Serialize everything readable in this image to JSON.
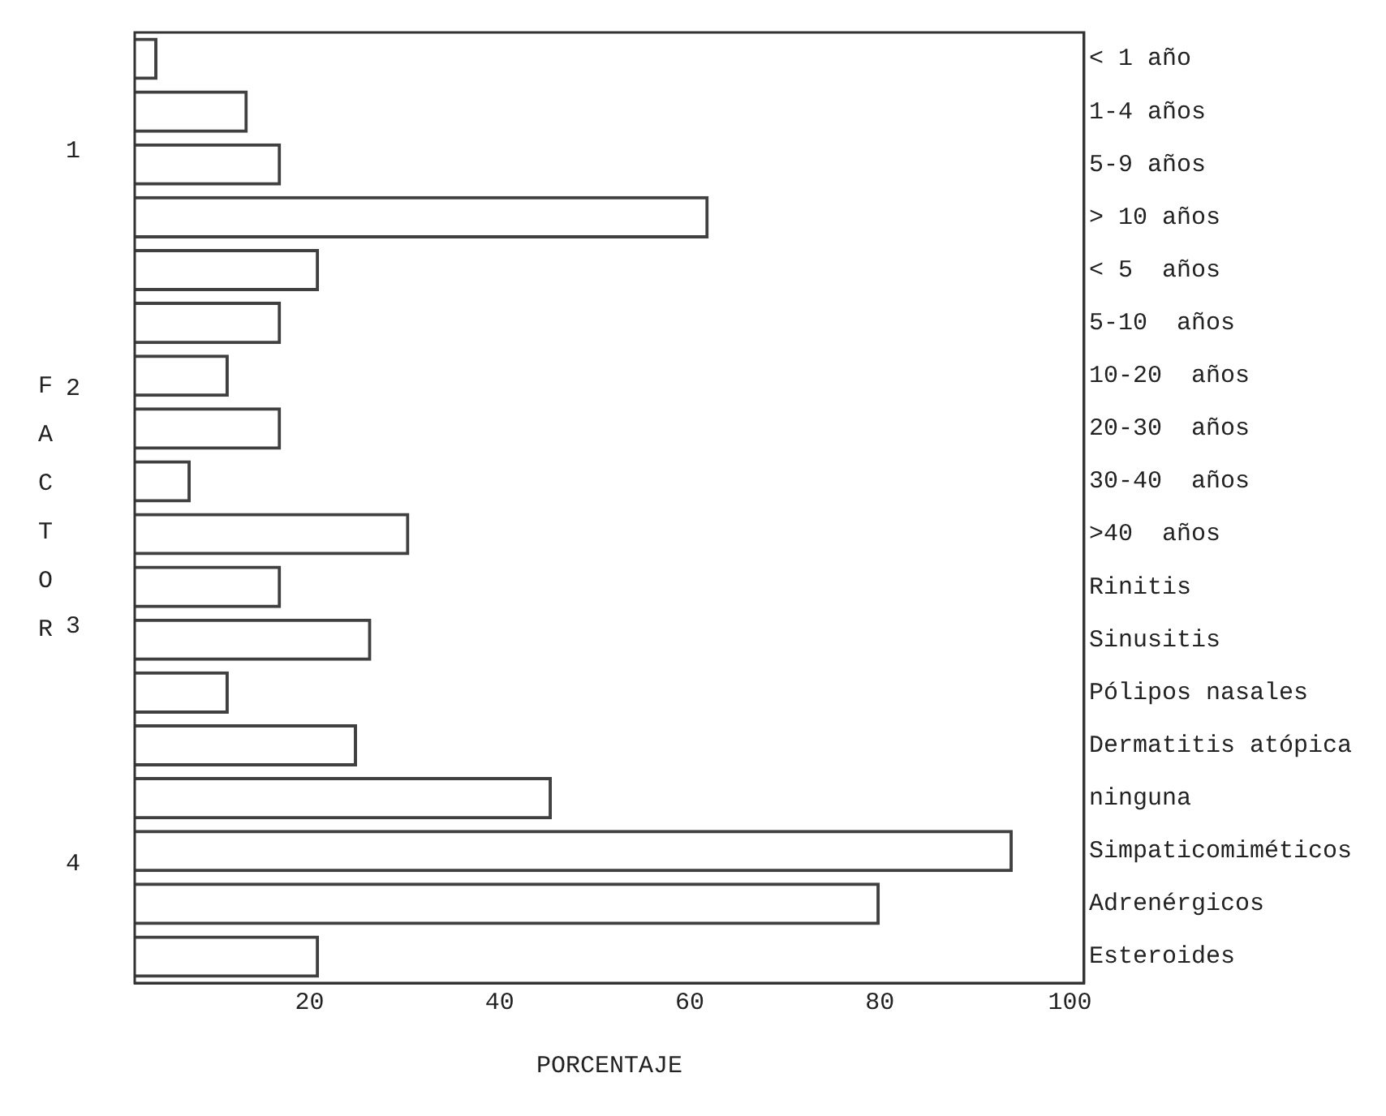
{
  "chart_data": {
    "type": "bar",
    "orientation": "horizontal",
    "xlabel": "PORCENTAJE",
    "ylabel": "FACTOR",
    "categories": [
      "< 1 año",
      "1-4 años",
      "5-9 años",
      "> 10 años",
      "< 5  años",
      "5-10  años",
      "10-20  años",
      "20-30  años",
      "30-40  años",
      ">40  años",
      "Rinitis",
      "Sinusitis",
      "Pólipos nasales",
      "Dermatitis atópica",
      "ninguna",
      "Simpaticomiméticos",
      "Adrenérgicos",
      "Esteroides"
    ],
    "series": [
      {
        "color": "#404040",
        "values": [
          4,
          13.5,
          17,
          62,
          21,
          17,
          11.5,
          17,
          7.5,
          30.5,
          17,
          26.5,
          11.5,
          25,
          45.5,
          94,
          80,
          21
        ]
      }
    ],
    "xlim": [
      1.6,
      101.5
    ],
    "xticks": [
      20,
      40,
      60,
      80,
      100
    ],
    "annotations": [
      "1",
      "2",
      "3",
      "4"
    ],
    "grid": false,
    "legend": false
  }
}
